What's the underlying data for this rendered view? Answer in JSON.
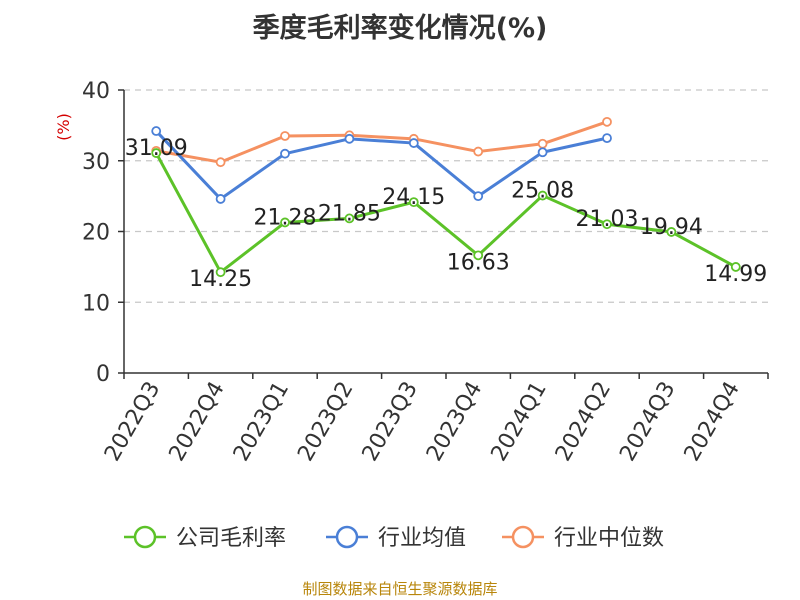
{
  "chart_data": {
    "type": "line",
    "title": "季度毛利率变化情况(%)",
    "ylabel": "(%)",
    "xlabel": "",
    "ylim": [
      0,
      40
    ],
    "yticks": [
      0,
      10,
      20,
      30,
      40
    ],
    "grid": true,
    "legend_position": "bottom",
    "categories": [
      "2022Q3",
      "2022Q4",
      "2023Q1",
      "2023Q2",
      "2023Q3",
      "2023Q4",
      "2024Q1",
      "2024Q2",
      "2024Q3",
      "2024Q4"
    ],
    "series": [
      {
        "name": "公司毛利率",
        "color": "#5cc228",
        "values": [
          31.09,
          14.25,
          21.28,
          21.85,
          24.15,
          16.63,
          25.08,
          21.03,
          19.94,
          14.99
        ],
        "labels": [
          "31.09",
          "14.25",
          "21.28",
          "21.85",
          "24.15",
          "16.63",
          "25.08",
          "21.03",
          "19.94",
          "14.99"
        ]
      },
      {
        "name": "行业均值",
        "color": "#4a7fd6",
        "values": [
          34.2,
          24.6,
          31.0,
          33.1,
          32.5,
          25.0,
          31.2,
          33.2,
          null,
          null
        ]
      },
      {
        "name": "行业中位数",
        "color": "#f59161",
        "values": [
          31.4,
          29.8,
          33.5,
          33.6,
          33.1,
          31.3,
          32.4,
          35.5,
          null,
          null
        ]
      }
    ]
  },
  "source_text": "制图数据来自恒生聚源数据库"
}
